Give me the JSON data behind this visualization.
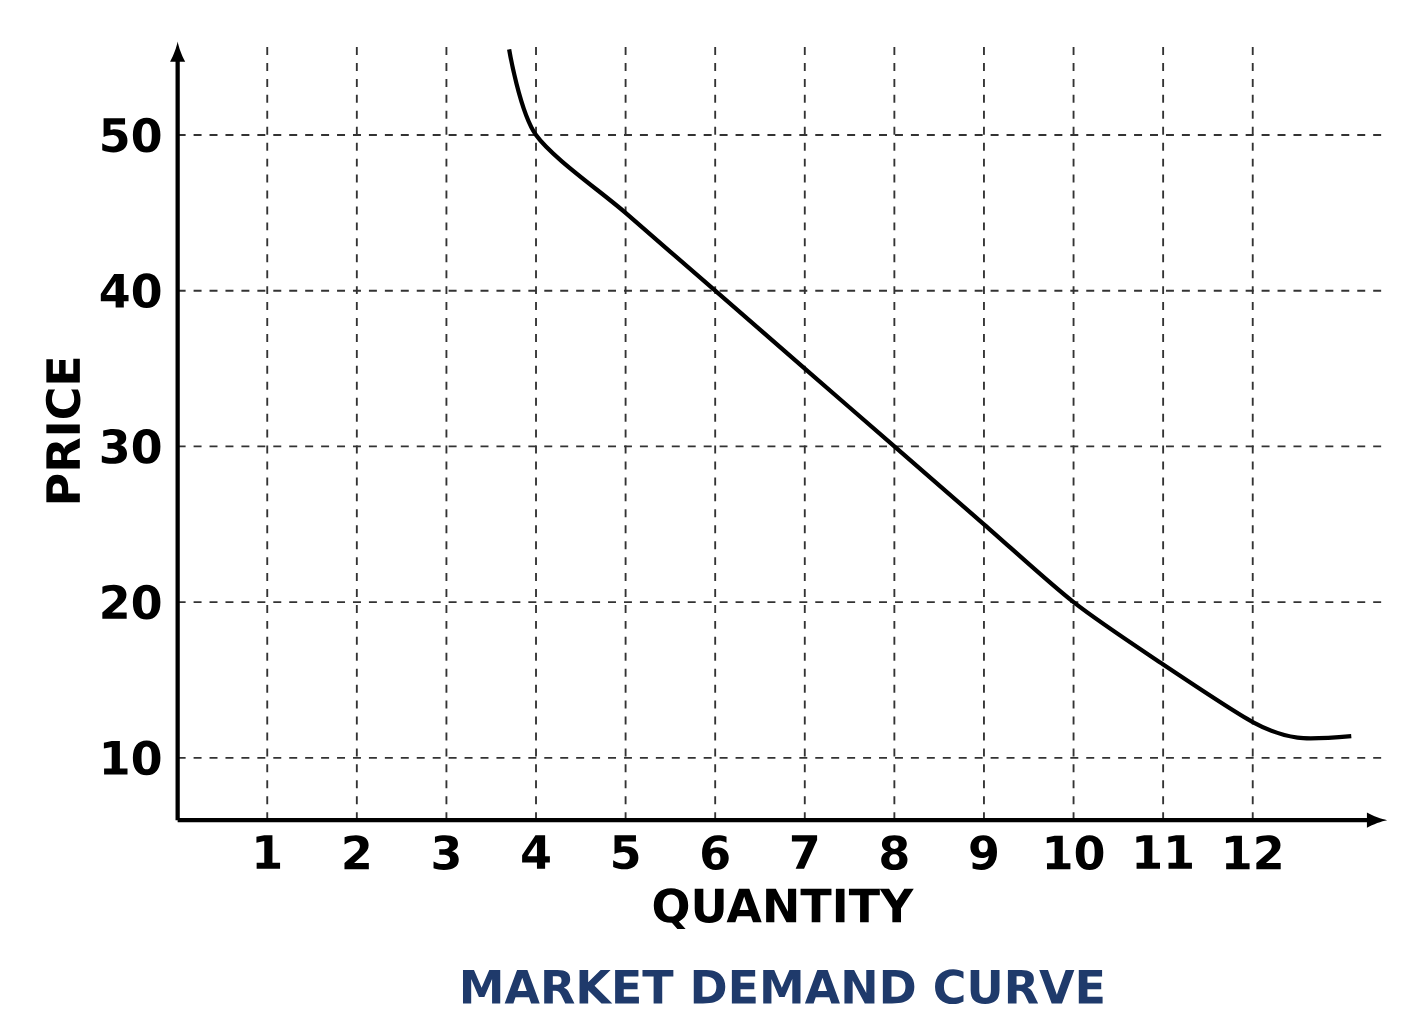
{
  "chart_data": {
    "type": "line",
    "title": "MARKET DEMAND CURVE",
    "xlabel": "QUANTITY",
    "ylabel": "PRICE",
    "x": [
      3.7,
      4,
      5,
      6,
      7,
      8,
      9,
      10,
      11,
      12,
      12.5,
      13.1
    ],
    "values": [
      55.5,
      50,
      45,
      40,
      35,
      30,
      25,
      20,
      16,
      12.3,
      11.3,
      11.4
    ],
    "color": "#000000",
    "xlim": [
      0,
      13.5
    ],
    "ylim": [
      6,
      56
    ],
    "xticks": [
      1,
      2,
      3,
      4,
      5,
      6,
      7,
      8,
      9,
      10,
      11,
      12
    ],
    "yticks": [
      10,
      20,
      30,
      40,
      50
    ],
    "grid": true,
    "marker": "none",
    "line_style": "solid"
  }
}
